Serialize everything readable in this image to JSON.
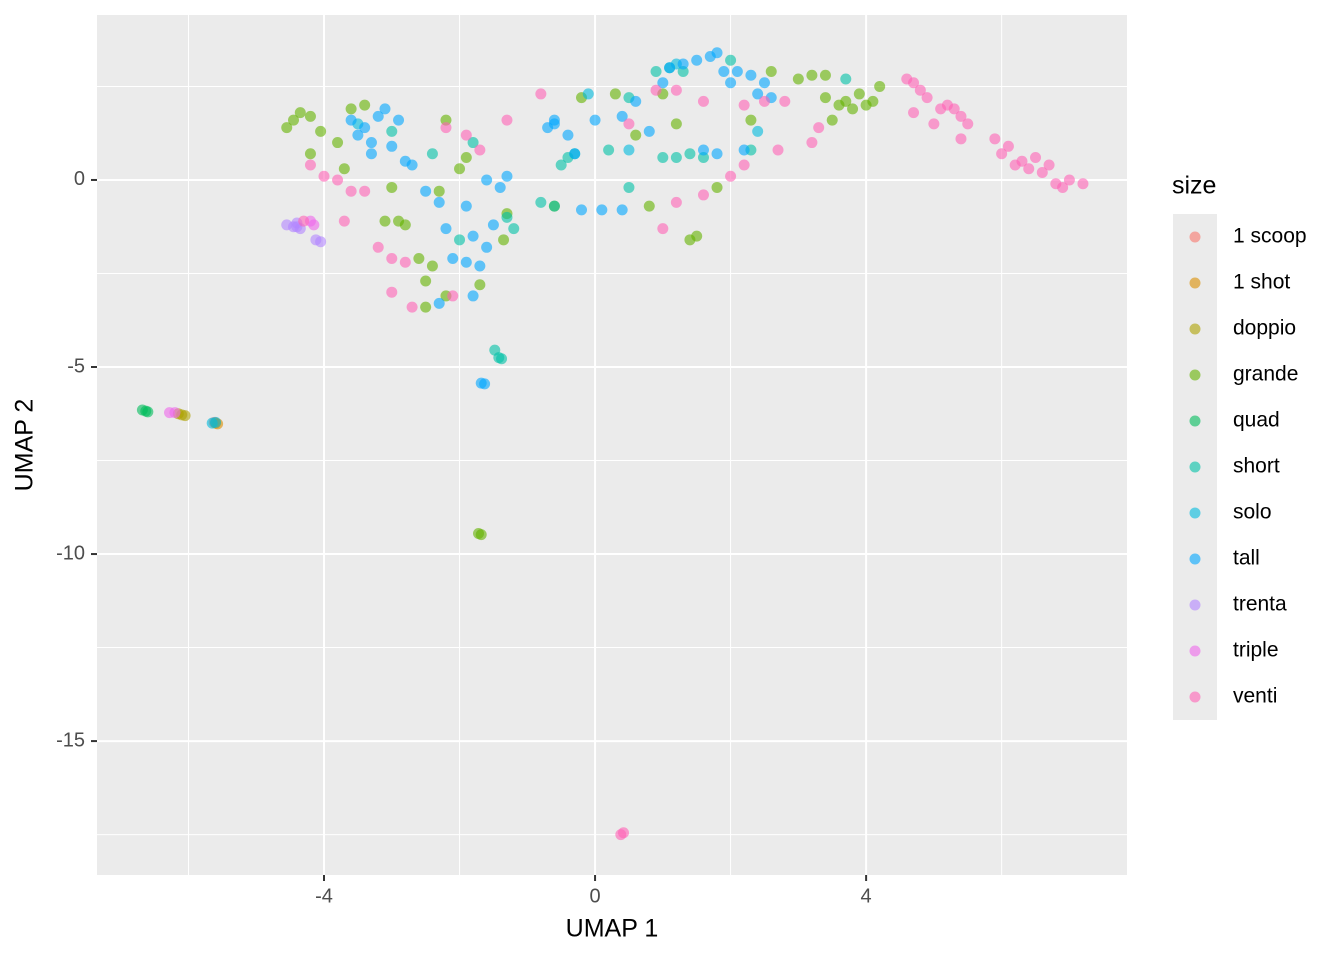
{
  "chart_data": {
    "type": "scatter",
    "x_label": "UMAP 1",
    "y_label": "UMAP 2",
    "legend_title": "size",
    "legend_position": "right",
    "grid": true,
    "xlim": [
      -7.35,
      7.85
    ],
    "ylim": [
      -18.58,
      4.41
    ],
    "xticks": [
      -4,
      0,
      4
    ],
    "yticks": [
      -15,
      -10,
      -5,
      0
    ],
    "series": [
      {
        "name": "1 scoop",
        "color": "#F8766D",
        "x": [
          -5.62
        ],
        "y": [
          -6.48
        ]
      },
      {
        "name": "1 shot",
        "color": "#DB8E00",
        "x": [
          -5.6,
          -5.57
        ],
        "y": [
          -6.5,
          -6.52
        ]
      },
      {
        "name": "doppio",
        "color": "#AEA200",
        "x": [
          -6.15,
          -6.1,
          -6.05
        ],
        "y": [
          -6.25,
          -6.28,
          -6.3
        ]
      },
      {
        "name": "grande",
        "color": "#64B200",
        "x": [
          -4.55,
          -4.45,
          -4.35,
          -4.2,
          -4.05,
          -3.8,
          -3.6,
          -3.4,
          -3.7,
          -4.2,
          -3.0,
          -2.9,
          -2.8,
          -2.6,
          -2.4,
          -2.5,
          -2.2,
          -2.5,
          -2.2,
          -2.0,
          -1.9,
          -2.3,
          -1.3,
          -1.35,
          -1.7,
          -1.72,
          -1.68,
          -0.2,
          0.3,
          0.6,
          1.0,
          1.2,
          1.5,
          1.4,
          1.8,
          2.3,
          2.6,
          3.0,
          3.2,
          3.4,
          3.6,
          3.7,
          3.8,
          3.9,
          4.0,
          4.1,
          3.5,
          3.4,
          4.2,
          -0.6,
          0.8,
          -3.1
        ],
        "y": [
          1.4,
          1.6,
          1.8,
          1.7,
          1.3,
          1.0,
          1.9,
          2.0,
          0.3,
          0.7,
          -0.2,
          -1.1,
          -1.2,
          -2.1,
          -2.3,
          -2.7,
          -3.1,
          -3.4,
          1.6,
          0.3,
          0.6,
          -0.3,
          -0.9,
          -1.6,
          -2.8,
          -9.45,
          -9.48,
          2.2,
          2.3,
          1.2,
          2.3,
          1.5,
          -1.5,
          -1.6,
          -0.2,
          1.6,
          2.9,
          2.7,
          2.8,
          2.8,
          2.0,
          2.1,
          1.9,
          2.3,
          2.0,
          2.1,
          1.6,
          2.2,
          2.5,
          -0.7,
          -0.7,
          -1.1
        ]
      },
      {
        "name": "quad",
        "color": "#00BD5C",
        "x": [
          -6.68,
          -6.63,
          -6.6
        ],
        "y": [
          -6.15,
          -6.18,
          -6.2
        ]
      },
      {
        "name": "short",
        "color": "#00C1A7",
        "x": [
          -1.48,
          -1.42,
          -1.38,
          -0.5,
          -0.4,
          -0.3,
          -0.6,
          -0.8,
          0.5,
          1.0,
          1.2,
          1.4,
          1.6,
          2.0,
          1.3,
          0.9,
          1.1,
          0.5,
          0.2,
          -1.2,
          -1.3,
          -2.0,
          -1.8,
          -2.4,
          3.7,
          2.3,
          -3.0
        ],
        "y": [
          -4.55,
          -4.75,
          -4.78,
          0.4,
          0.6,
          0.7,
          -0.7,
          -0.6,
          -0.2,
          0.6,
          0.6,
          0.7,
          0.6,
          3.2,
          2.9,
          2.9,
          3.0,
          2.2,
          0.8,
          -1.3,
          -1.0,
          -1.6,
          1.0,
          0.7,
          2.7,
          0.8,
          1.3
        ]
      },
      {
        "name": "solo",
        "color": "#00BADE",
        "x": [
          -5.65,
          -5.6,
          -0.1,
          1.2,
          2.4,
          -3.5,
          0.5
        ],
        "y": [
          -6.5,
          -6.48,
          2.3,
          3.1,
          1.3,
          1.5,
          0.8
        ]
      },
      {
        "name": "tall",
        "color": "#00A6FF",
        "x": [
          -1.68,
          -1.63,
          -3.6,
          -3.5,
          -3.4,
          -3.3,
          -3.2,
          -3.1,
          -3.3,
          -3.0,
          -2.9,
          -2.8,
          -2.7,
          -2.5,
          -2.3,
          -2.2,
          -2.1,
          -2.3,
          -1.9,
          -1.8,
          -1.7,
          -1.6,
          -1.9,
          -1.8,
          -1.5,
          -1.4,
          -1.3,
          -1.6,
          -0.6,
          -0.4,
          -0.2,
          0.1,
          0.4,
          0.0,
          0.4,
          0.6,
          0.8,
          1.0,
          1.1,
          1.3,
          1.5,
          1.7,
          1.8,
          1.9,
          2.1,
          2.3,
          2.5,
          2.4,
          2.6,
          1.6,
          1.8,
          2.2,
          2.0,
          -0.7,
          -0.6,
          -0.3
        ],
        "y": [
          -5.43,
          -5.45,
          1.6,
          1.2,
          1.4,
          1.0,
          1.7,
          1.9,
          0.7,
          0.9,
          1.6,
          0.5,
          0.4,
          -0.3,
          -0.6,
          -1.3,
          -2.1,
          -3.3,
          -0.7,
          -1.5,
          -2.3,
          -1.8,
          -2.2,
          -3.1,
          -1.2,
          -0.2,
          0.1,
          0.0,
          1.5,
          1.2,
          -0.8,
          -0.8,
          -0.8,
          1.6,
          1.7,
          2.1,
          1.3,
          2.6,
          3.0,
          3.1,
          3.2,
          3.3,
          3.4,
          2.9,
          2.9,
          2.8,
          2.6,
          2.3,
          2.2,
          0.8,
          0.7,
          0.8,
          2.6,
          1.4,
          1.6,
          0.7
        ]
      },
      {
        "name": "trenta",
        "color": "#B385FF",
        "x": [
          -4.55,
          -4.45,
          -4.4,
          -4.35,
          -4.12,
          -4.05,
          -4.4
        ],
        "y": [
          -1.2,
          -1.25,
          -1.15,
          -1.3,
          -1.6,
          -1.65,
          -1.25
        ]
      },
      {
        "name": "triple",
        "color": "#EF67EB",
        "x": [
          -6.28,
          -6.2,
          -4.2,
          -4.15
        ],
        "y": [
          -6.22,
          -6.22,
          -1.1,
          -1.2
        ]
      },
      {
        "name": "venti",
        "color": "#FF63B6",
        "x": [
          0.38,
          0.42,
          -4.3,
          -4.2,
          -4.0,
          -3.8,
          -3.6,
          -3.4,
          -3.7,
          -3.2,
          -3.0,
          -2.8,
          -3.0,
          -2.7,
          -2.2,
          -1.9,
          -1.7,
          -0.8,
          0.5,
          0.9,
          1.2,
          1.6,
          2.2,
          2.5,
          2.8,
          3.2,
          2.7,
          2.2,
          2.0,
          1.6,
          1.2,
          1.0,
          -1.3,
          -2.1,
          4.6,
          4.7,
          4.8,
          4.9,
          4.7,
          5.0,
          5.1,
          5.2,
          5.3,
          5.4,
          5.5,
          5.4,
          5.9,
          6.0,
          6.1,
          6.3,
          6.4,
          6.6,
          6.8,
          7.0,
          7.2,
          6.9,
          6.5,
          6.2,
          6.7,
          3.3
        ],
        "y": [
          -17.5,
          -17.45,
          -1.1,
          0.4,
          0.1,
          0.0,
          -0.3,
          -0.3,
          -1.1,
          -1.8,
          -2.1,
          -2.2,
          -3.0,
          -3.4,
          1.4,
          1.2,
          0.8,
          2.3,
          1.5,
          2.4,
          2.4,
          2.1,
          2.0,
          2.1,
          2.1,
          1.0,
          0.8,
          0.4,
          0.1,
          -0.4,
          -0.6,
          -1.3,
          1.6,
          -3.1,
          2.7,
          2.6,
          2.4,
          2.2,
          1.8,
          1.5,
          1.9,
          2.0,
          1.9,
          1.7,
          1.5,
          1.1,
          1.1,
          0.7,
          0.9,
          0.5,
          0.3,
          0.2,
          -0.1,
          0.0,
          -0.1,
          -0.2,
          0.6,
          0.4,
          0.4,
          1.4
        ]
      }
    ]
  }
}
